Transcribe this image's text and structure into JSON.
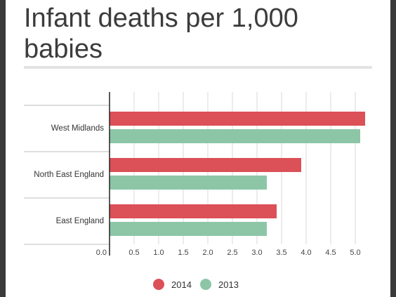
{
  "page": {
    "title": "Infant deaths per 1,000 babies"
  },
  "chart_data": {
    "type": "bar",
    "orientation": "horizontal",
    "title": "Infant deaths per 1,000 babies",
    "categories": [
      "West Midlands",
      "North East England",
      "East England"
    ],
    "series": [
      {
        "name": "2014",
        "color": "#dc5057",
        "values": [
          5.2,
          3.9,
          3.4
        ]
      },
      {
        "name": "2013",
        "color": "#8cc6a7",
        "values": [
          5.1,
          3.2,
          3.2
        ]
      }
    ],
    "xlim": [
      0,
      5.3
    ],
    "xticks": [
      "0.0",
      "0.5",
      "1.0",
      "1.5",
      "2.0",
      "2.5",
      "3.0",
      "3.5",
      "4.0",
      "4.5",
      "5.0"
    ],
    "grid": true,
    "legend_position": "bottom"
  }
}
